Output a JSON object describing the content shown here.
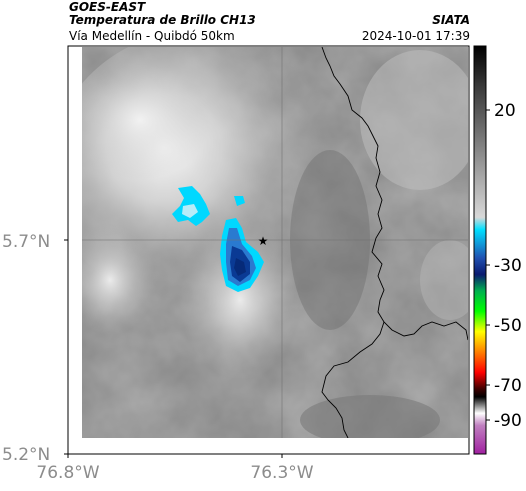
{
  "header": {
    "satellite": "GOES-EAST",
    "product": "Temperatura de Brillo CH13",
    "source": "SIATA",
    "region": "Vía Medellín - Quibdó 50km",
    "timestamp": "2024-10-01 17:39"
  },
  "axes": {
    "lat_ticks": [
      "5.7°N",
      "5.2°N"
    ],
    "lon_ticks": [
      "76.8°W",
      "76.3°W"
    ]
  },
  "colorbar": {
    "ticks": [
      "20",
      "-30",
      "-50",
      "-70",
      "-90"
    ]
  },
  "colors": {
    "cold_cyan": "#00d8ff",
    "cold_blue": "#1050b0",
    "deep_blue": "#062a78",
    "border_line": "#000000"
  },
  "marker_icon": "star-icon"
}
